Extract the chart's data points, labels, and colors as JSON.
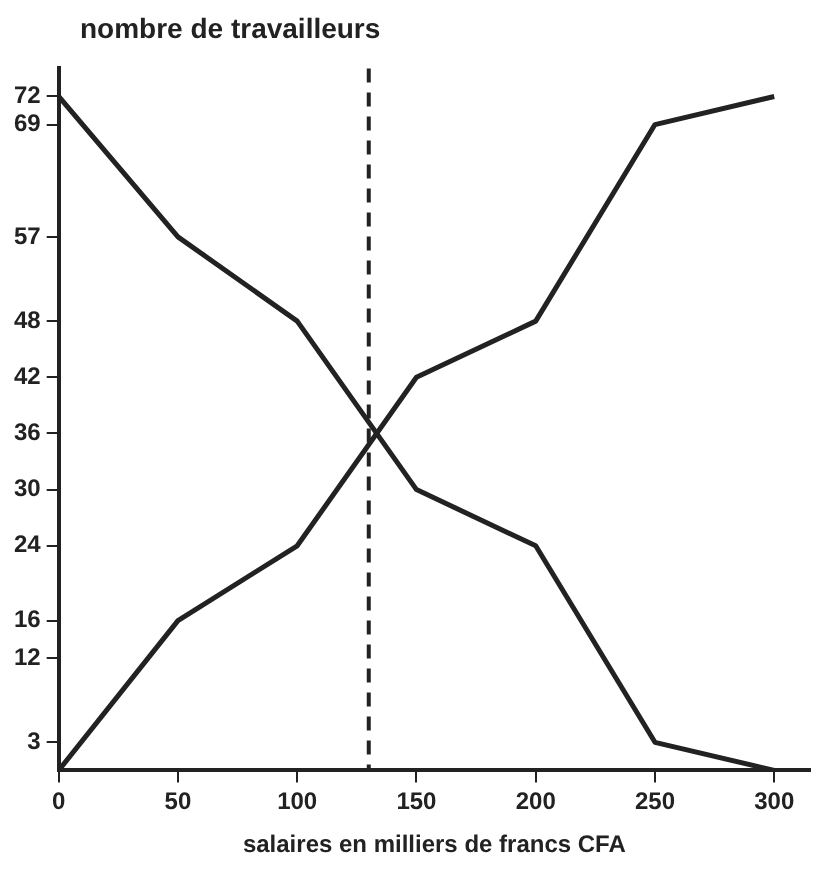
{
  "chart_data": {
    "type": "line",
    "ylabel": "nombre de travailleurs",
    "xlabel": "salaires en milliers de francs CFA",
    "x": [
      0,
      50,
      100,
      150,
      200,
      250,
      300
    ],
    "series": [
      {
        "color": "#222222",
        "values": [
          0,
          16,
          24,
          42,
          48,
          69,
          72
        ]
      },
      {
        "color": "#222222",
        "values": [
          72,
          57,
          48,
          30,
          24,
          3,
          0
        ]
      }
    ],
    "xlim": [
      0,
      315
    ],
    "xticks": [
      0,
      50,
      100,
      150,
      200,
      250,
      300
    ],
    "ylim": [
      0,
      75
    ],
    "yticks": [
      3,
      12,
      16,
      24,
      30,
      36,
      42,
      48,
      57,
      69,
      72
    ],
    "ref_lines": [
      {
        "axis": "x",
        "value": 130,
        "line_style": "dashed",
        "color": "#222222"
      }
    ],
    "grid": false,
    "legend": false,
    "marker": "none",
    "line_style": "solid"
  }
}
